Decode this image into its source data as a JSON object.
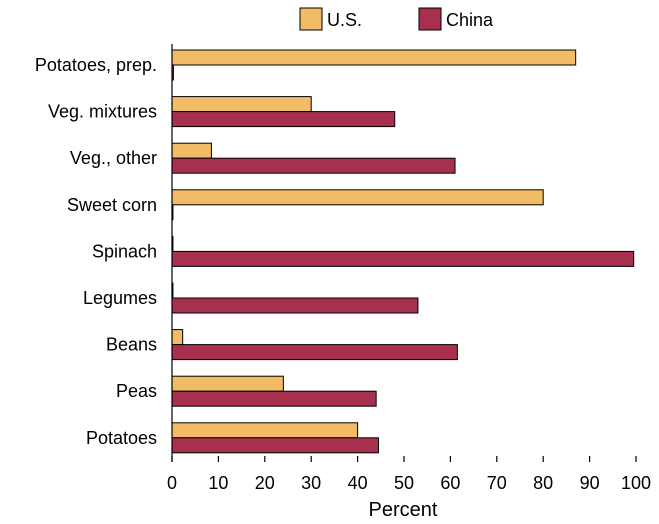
{
  "chart_data": {
    "type": "bar",
    "orientation": "horizontal",
    "categories": [
      "Potatoes, prep.",
      "Veg. mixtures",
      "Veg., other",
      "Sweet corn",
      "Spinach",
      "Legumes",
      "Beans",
      "Peas",
      "Potatoes"
    ],
    "series": [
      {
        "name": "U.S.",
        "color": "#f2bb66",
        "values": [
          87,
          30,
          8.5,
          80,
          0.2,
          0.2,
          2.3,
          24,
          40
        ]
      },
      {
        "name": "China",
        "color": "#a8304f",
        "values": [
          0.3,
          48,
          61,
          0.2,
          99.5,
          53,
          61.5,
          44,
          44.5
        ]
      }
    ],
    "xlabel": "Percent",
    "ylabel": "",
    "xlim": [
      0,
      100
    ],
    "xticks": [
      "0",
      "10",
      "20",
      "30",
      "40",
      "50",
      "60",
      "70",
      "80",
      "90",
      "100"
    ],
    "legend": {
      "placement": "top"
    },
    "grid": false
  }
}
